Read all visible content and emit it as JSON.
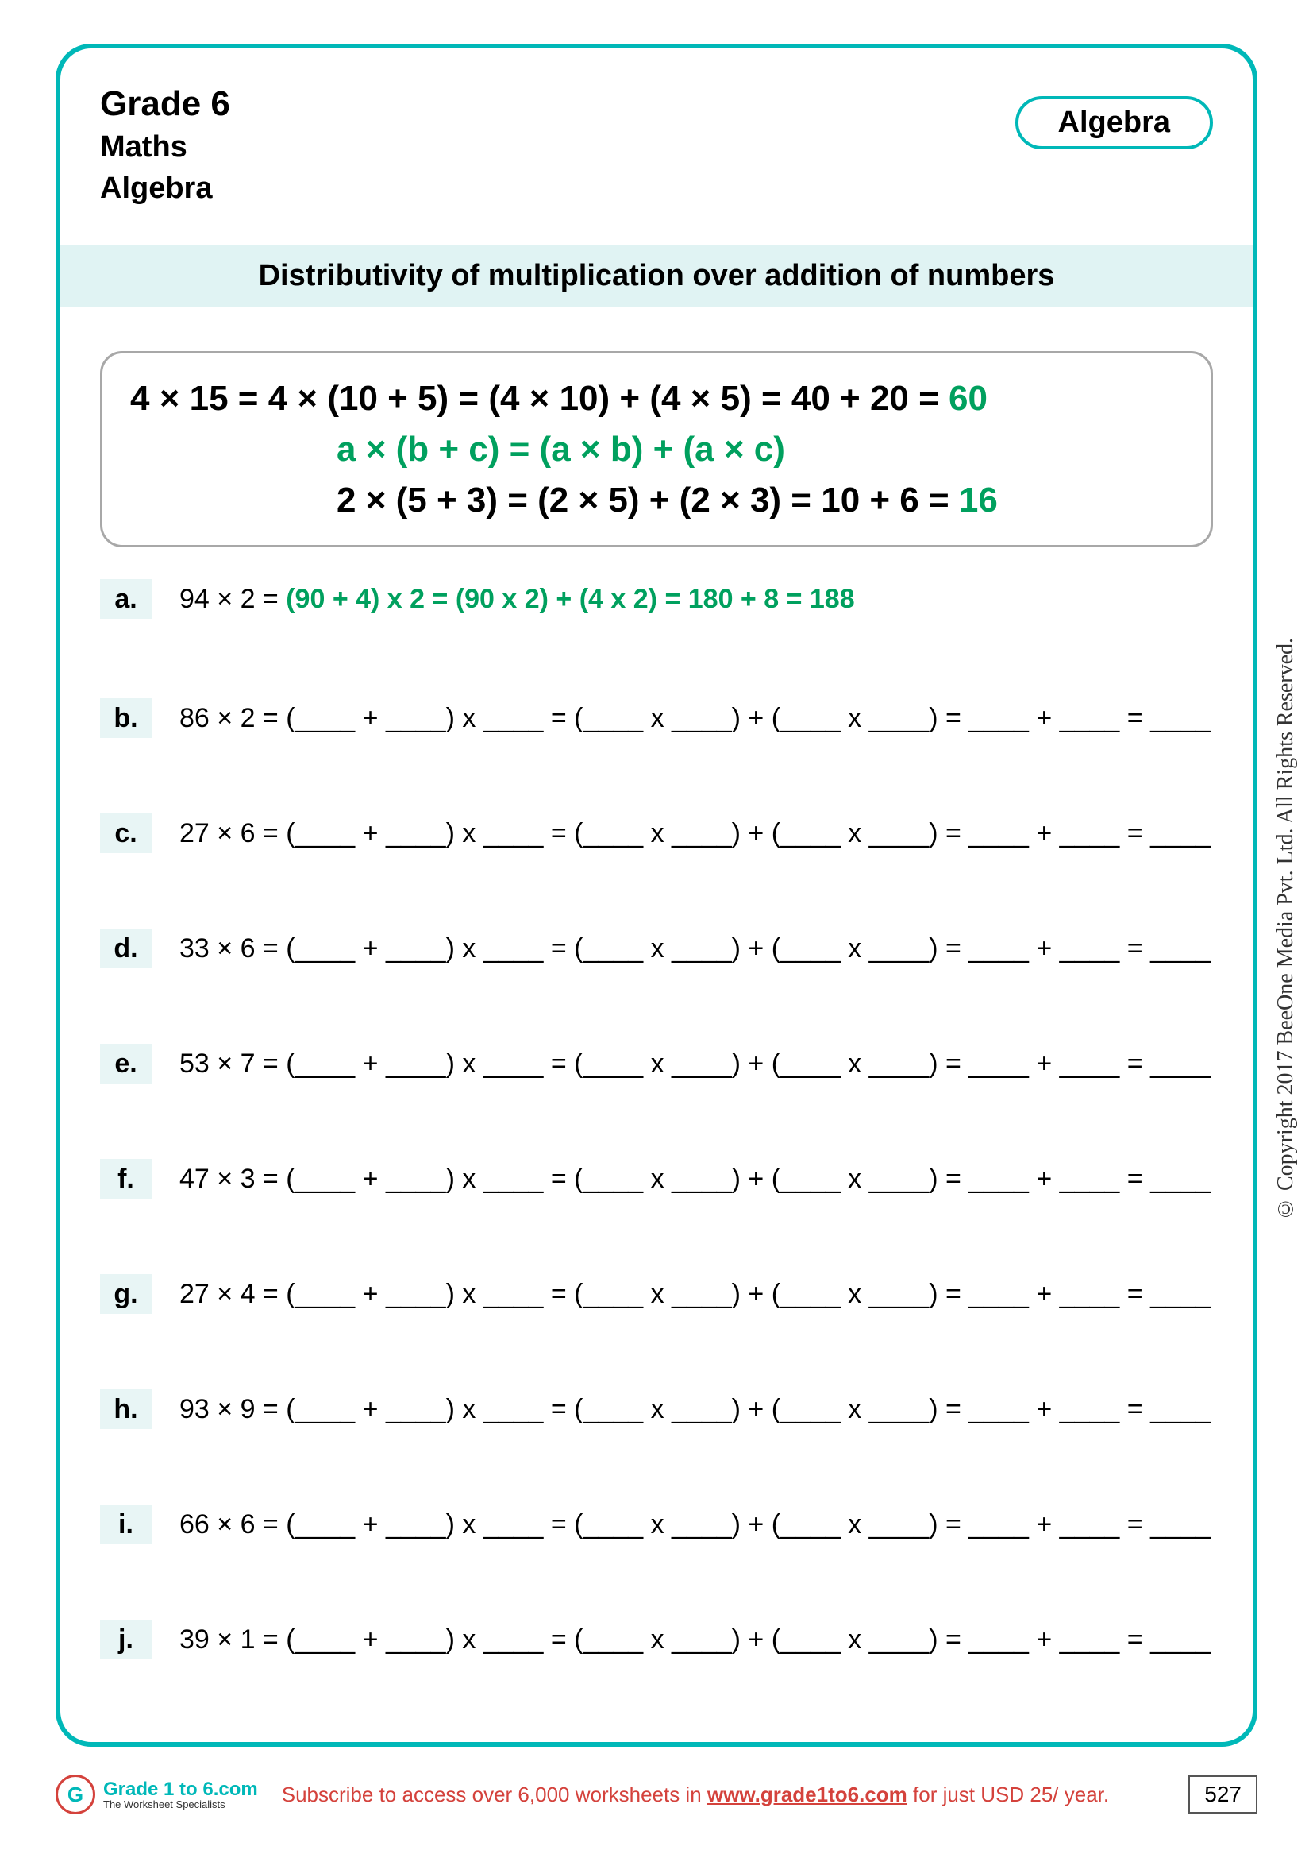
{
  "header": {
    "grade": "Grade 6",
    "subject1": "Maths",
    "subject2": "Algebra",
    "pill": "Algebra"
  },
  "title": "Distributivity of multiplication over addition of numbers",
  "example": {
    "line1_black": "4 × 15 = 4 × (10 + 5) = (4 × 10) + (4 × 5) = 40 + 20 = ",
    "line1_green": "60",
    "line2_green": "a × (b + c)    = (a × b)  + (a × c)",
    "line3_black": "2 × (5 + 3)   = (2 × 5)  + (2 × 3) = 10 + 6   = ",
    "line3_green": "16"
  },
  "problems": [
    {
      "letter": "a.",
      "prefix": "94 × 2 = ",
      "solved": true,
      "answer": "(90 + 4) x 2 = (90 x 2) + (4 x 2) = 180 + 8 = 188"
    },
    {
      "letter": "b.",
      "prefix": "86 × 2 = ",
      "solved": false
    },
    {
      "letter": "c.",
      "prefix": "27 × 6 = ",
      "solved": false
    },
    {
      "letter": "d.",
      "prefix": "33 × 6 = ",
      "solved": false
    },
    {
      "letter": "e.",
      "prefix": "53 × 7 = ",
      "solved": false
    },
    {
      "letter": "f.",
      "prefix": "47 × 3 = ",
      "solved": false
    },
    {
      "letter": "g.",
      "prefix": "27 × 4 = ",
      "solved": false
    },
    {
      "letter": "h.",
      "prefix": "93 × 9 = ",
      "solved": false
    },
    {
      "letter": "i.",
      "prefix": "66 × 6 = ",
      "solved": false
    },
    {
      "letter": "j.",
      "prefix": "39 × 1 = ",
      "solved": false
    }
  ],
  "blank_template": "(____ + ____) x ____ = (____ x ____) + (____ x ____) = ____ + ____ = ____",
  "copyright": "© Copyright 2017 BeeOne Media Pvt. Ltd. All Rights Reserved.",
  "footer": {
    "logo_main": "Grade 1 to 6.com",
    "logo_sub": "The Worksheet Specialists",
    "text_pre": "Subscribe to access over 6,000 worksheets in ",
    "link": "www.grade1to6.com",
    "text_post": " for just USD 25/ year.",
    "page_num": "527"
  },
  "colors": {
    "teal": "#00b8b8",
    "green": "#00a05e",
    "red": "#d4423c",
    "light_teal_bg": "#e0f3f3",
    "letter_bg": "#e8f5f5"
  }
}
